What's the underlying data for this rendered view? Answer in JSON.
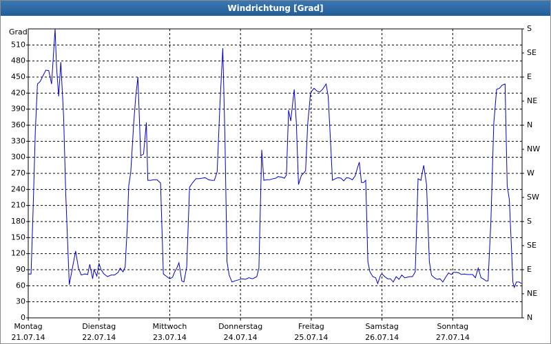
{
  "chart_data": {
    "type": "line",
    "title": "Windrichtung [Grad]",
    "y_label": "Grad",
    "color": "#0000cc",
    "grid": true,
    "xlim": [
      0,
      6.98
    ],
    "xticks": [
      {
        "value": 0,
        "label": "Montag",
        "date": "21.07.14"
      },
      {
        "value": 1,
        "label": "Dienstag",
        "date": "22.07.14"
      },
      {
        "value": 2,
        "label": "Mittwoch",
        "date": "23.07.14"
      },
      {
        "value": 3,
        "label": "Donnerstag",
        "date": "24.07.14"
      },
      {
        "value": 4,
        "label": "Freitag",
        "date": "25.07.14"
      },
      {
        "value": 5,
        "label": "Samstag",
        "date": "26.07.14"
      },
      {
        "value": 6,
        "label": "Sonntag",
        "date": "27.07.14"
      }
    ],
    "ylim": [
      0,
      540
    ],
    "yticks": [
      0,
      30,
      60,
      90,
      120,
      150,
      180,
      210,
      240,
      270,
      300,
      330,
      360,
      390,
      420,
      450,
      480,
      510
    ],
    "y2lim": [
      0,
      540
    ],
    "y2ticks": [
      {
        "value": 0,
        "label": "N"
      },
      {
        "value": 45,
        "label": "NE"
      },
      {
        "value": 90,
        "label": "E"
      },
      {
        "value": 135,
        "label": "SE"
      },
      {
        "value": 180,
        "label": "S"
      },
      {
        "value": 225,
        "label": "SW"
      },
      {
        "value": 270,
        "label": "W"
      },
      {
        "value": 315,
        "label": "NW"
      },
      {
        "value": 360,
        "label": "N"
      },
      {
        "value": 405,
        "label": "NE"
      },
      {
        "value": 450,
        "label": "E"
      },
      {
        "value": 495,
        "label": "SE"
      },
      {
        "value": 540,
        "label": "S"
      }
    ],
    "x": [
      0.0,
      0.04,
      0.07,
      0.1,
      0.13,
      0.17,
      0.21,
      0.25,
      0.29,
      0.33,
      0.38,
      0.4,
      0.43,
      0.46,
      0.5,
      0.53,
      0.56,
      0.58,
      0.62,
      0.67,
      0.71,
      0.75,
      0.8,
      0.84,
      0.87,
      0.91,
      0.93,
      0.97,
      1.0,
      1.03,
      1.07,
      1.12,
      1.17,
      1.22,
      1.27,
      1.3,
      1.34,
      1.37,
      1.4,
      1.42,
      1.45,
      1.49,
      1.52,
      1.55,
      1.59,
      1.63,
      1.67,
      1.69,
      1.73,
      1.77,
      1.82,
      1.87,
      1.91,
      1.96,
      2.0,
      2.04,
      2.07,
      2.1,
      2.13,
      2.17,
      2.2,
      2.24,
      2.28,
      2.32,
      2.37,
      2.41,
      2.46,
      2.5,
      2.55,
      2.59,
      2.63,
      2.67,
      2.71,
      2.75,
      2.78,
      2.81,
      2.84,
      2.88,
      2.92,
      2.97,
      3.02,
      3.07,
      3.12,
      3.17,
      3.23,
      3.26,
      3.3,
      3.33,
      3.37,
      3.41,
      3.46,
      3.5,
      3.53,
      3.58,
      3.62,
      3.65,
      3.68,
      3.71,
      3.76,
      3.79,
      3.82,
      3.86,
      3.89,
      3.92,
      3.95,
      3.99,
      4.01,
      4.04,
      4.08,
      4.12,
      4.16,
      4.21,
      4.24,
      4.27,
      4.3,
      4.34,
      4.38,
      4.42,
      4.46,
      4.5,
      4.54,
      4.58,
      4.62,
      4.65,
      4.68,
      4.71,
      4.74,
      4.77,
      4.8,
      4.83,
      4.87,
      4.91,
      4.94,
      4.98,
      5.0,
      5.04,
      5.08,
      5.12,
      5.16,
      5.2,
      5.24,
      5.28,
      5.32,
      5.36,
      5.39,
      5.43,
      5.47,
      5.51,
      5.55,
      5.59,
      5.63,
      5.67,
      5.7,
      5.74,
      5.78,
      5.82,
      5.86,
      5.9,
      5.94,
      5.98,
      6.01,
      6.05,
      6.09,
      6.12,
      6.16,
      6.2,
      6.24,
      6.28,
      6.32,
      6.36,
      6.4,
      6.43,
      6.47,
      6.5,
      6.54,
      6.58,
      6.62,
      6.66,
      6.7,
      6.74,
      6.77,
      6.8,
      6.83,
      6.85,
      6.87,
      6.9,
      6.94,
      6.97
    ],
    "values": [
      82,
      82,
      208,
      350,
      437,
      442,
      453,
      463,
      462,
      437,
      540,
      469,
      414,
      478,
      375,
      234,
      131,
      62,
      90,
      125,
      93,
      80,
      82,
      81,
      100,
      73,
      90,
      78,
      102,
      90,
      82,
      77,
      80,
      80,
      85,
      93,
      86,
      95,
      170,
      247,
      273,
      363,
      414,
      450,
      303,
      306,
      365,
      257,
      257,
      258,
      258,
      252,
      82,
      77,
      73,
      76,
      86,
      93,
      103,
      69,
      67,
      95,
      244,
      252,
      260,
      260,
      261,
      262,
      258,
      257,
      257,
      273,
      401,
      504,
      337,
      105,
      80,
      67,
      69,
      71,
      73,
      72,
      75,
      73,
      77,
      93,
      314,
      257,
      258,
      258,
      260,
      261,
      264,
      263,
      261,
      267,
      388,
      368,
      427,
      363,
      249,
      266,
      270,
      275,
      363,
      420,
      424,
      429,
      424,
      422,
      427,
      437,
      414,
      337,
      257,
      260,
      262,
      261,
      256,
      262,
      261,
      258,
      265,
      279,
      291,
      253,
      253,
      257,
      105,
      86,
      77,
      75,
      64,
      80,
      82,
      77,
      73,
      73,
      67,
      77,
      72,
      80,
      75,
      76,
      77,
      77,
      86,
      260,
      257,
      285,
      249,
      105,
      80,
      75,
      72,
      73,
      67,
      76,
      84,
      81,
      85,
      85,
      84,
      81,
      82,
      81,
      81,
      81,
      75,
      93,
      75,
      73,
      69,
      69,
      183,
      363,
      427,
      429,
      435,
      437,
      247,
      221,
      131,
      67,
      57,
      67,
      67,
      64
    ]
  }
}
